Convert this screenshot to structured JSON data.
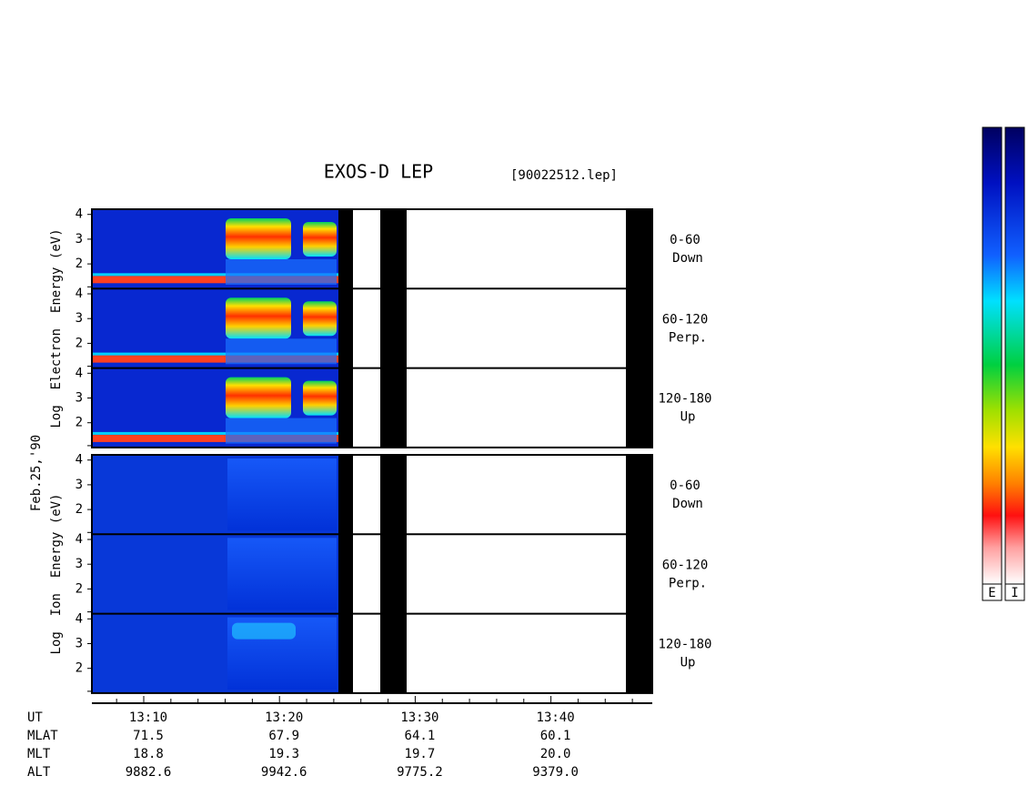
{
  "title": "EXOS-D LEP",
  "file_name": "[90022512.lep]",
  "date_label": "Feb.25,'90",
  "panels": [
    {
      "ylabel": "Log  Electron  Energy (eV)",
      "subpanels": [
        {
          "yticks": [
            4,
            3,
            2
          ],
          "pitch_angle": "0-60",
          "direction": "Down"
        },
        {
          "yticks": [
            4,
            3,
            2
          ],
          "pitch_angle": "60-120",
          "direction": "Perp."
        },
        {
          "yticks": [
            4,
            3,
            2
          ],
          "pitch_angle": "120-180",
          "direction": "Up"
        }
      ]
    },
    {
      "ylabel": "Log  Ion  Energy (eV)",
      "subpanels": [
        {
          "yticks": [
            4,
            3,
            2
          ],
          "pitch_angle": "0-60",
          "direction": "Down"
        },
        {
          "yticks": [
            4,
            3,
            2
          ],
          "pitch_angle": "60-120",
          "direction": "Perp."
        },
        {
          "yticks": [
            4,
            3,
            2
          ],
          "pitch_angle": "120-180",
          "direction": "Up"
        }
      ]
    }
  ],
  "x_axis": {
    "rows": [
      {
        "name": "UT",
        "values": [
          "13:10",
          "13:20",
          "13:30",
          "13:40"
        ]
      },
      {
        "name": "MLAT",
        "values": [
          "71.5",
          "67.9",
          "64.1",
          "60.1"
        ]
      },
      {
        "name": "MLT",
        "values": [
          "18.8",
          "19.3",
          "19.7",
          "20.0"
        ]
      },
      {
        "name": "ALT",
        "values": [
          "9882.6",
          "9942.6",
          "9775.2",
          "9379.0"
        ]
      }
    ]
  },
  "colorbars": [
    "E",
    "I"
  ]
}
